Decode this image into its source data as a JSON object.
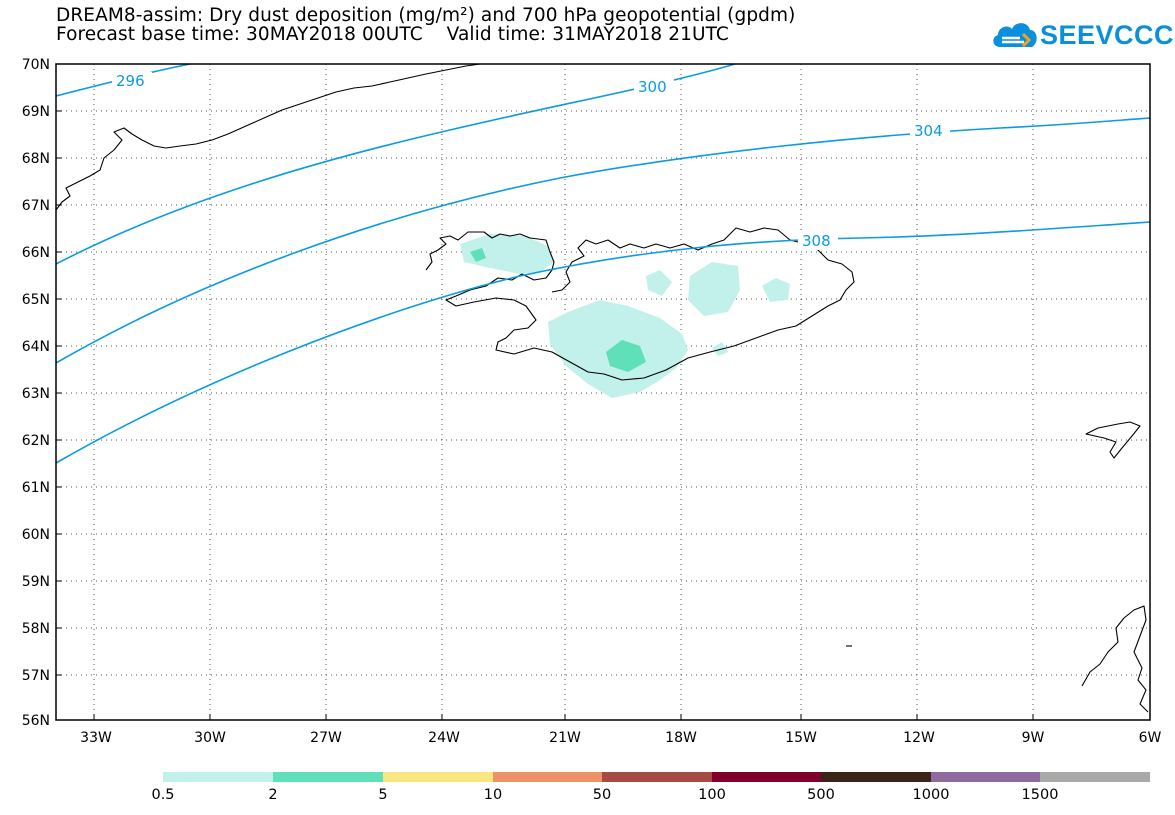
{
  "title": {
    "line1": "DREAM8-assim: Dry dust deposition (mg/m²) and 700 hPa geopotential (gpdm)",
    "line2": "Forecast base time: 30MAY2018 00UTC    Valid time: 31MAY2018 21UTC"
  },
  "logo": {
    "text": "SEEVCCC",
    "icon": "cloud-icon"
  },
  "axes": {
    "lat_labels": [
      "70N",
      "69N",
      "68N",
      "67N",
      "66N",
      "65N",
      "64N",
      "63N",
      "62N",
      "61N",
      "60N",
      "59N",
      "58N",
      "57N",
      "56N"
    ],
    "lon_labels": [
      "33W",
      "30W",
      "27W",
      "24W",
      "21W",
      "18W",
      "15W",
      "12W",
      "9W",
      "6W"
    ],
    "lat_range": [
      56,
      70
    ],
    "lon_range": [
      -34.3,
      -6
    ],
    "grid": "dotted"
  },
  "contours": [
    {
      "label": "296"
    },
    {
      "label": "300"
    },
    {
      "label": "304"
    },
    {
      "label": "308"
    }
  ],
  "legend": {
    "colors": [
      "#c2f0ea",
      "#5fe0b8",
      "#f8e781",
      "#ee926a",
      "#a84a44",
      "#82002c",
      "#3a2419",
      "#8e6a9e",
      "#a9a9a9"
    ],
    "labels": [
      "0.5",
      "2",
      "5",
      "10",
      "50",
      "100",
      "500",
      "1000",
      "1500"
    ]
  },
  "colors": {
    "contour": "#0a9be3",
    "coast": "#000000",
    "dust_low": "#c2f0ea",
    "dust_mid": "#5fe0b8"
  }
}
